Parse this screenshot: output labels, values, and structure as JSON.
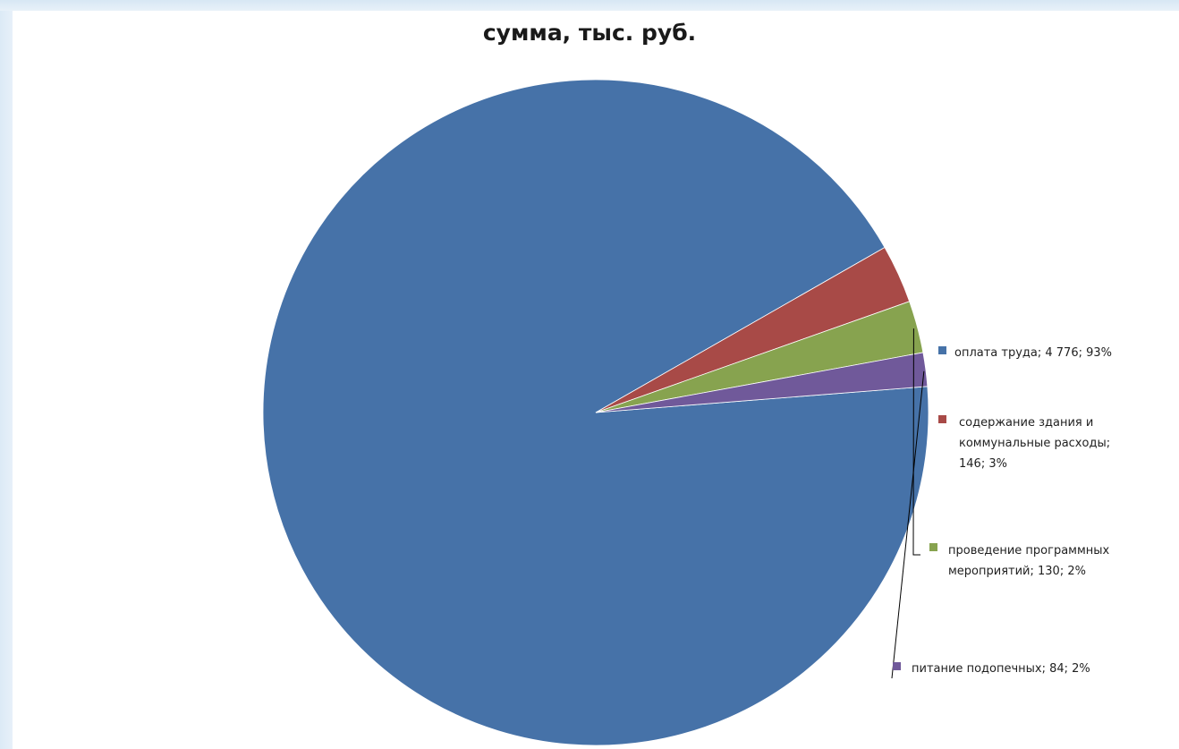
{
  "chart_data": {
    "type": "pie",
    "title": "сумма, тыс. руб.",
    "slices": [
      {
        "label_lines": [
          "оплата труда; 4 776; 93%"
        ],
        "value": 4776,
        "percent": 93,
        "color": "#4672a8"
      },
      {
        "label_lines": [
          "содержание здания и",
          "коммунальные расходы;",
          "146; 3%"
        ],
        "value": 146,
        "percent": 3,
        "color": "#a84a47"
      },
      {
        "label_lines": [
          "проведение программных",
          "мероприятий; 130; 2%"
        ],
        "value": 130,
        "percent": 2,
        "color": "#87a34f"
      },
      {
        "label_lines": [
          "питание подопечных; 84; 2%"
        ],
        "value": 84,
        "percent": 2,
        "color": "#70599a"
      }
    ]
  }
}
